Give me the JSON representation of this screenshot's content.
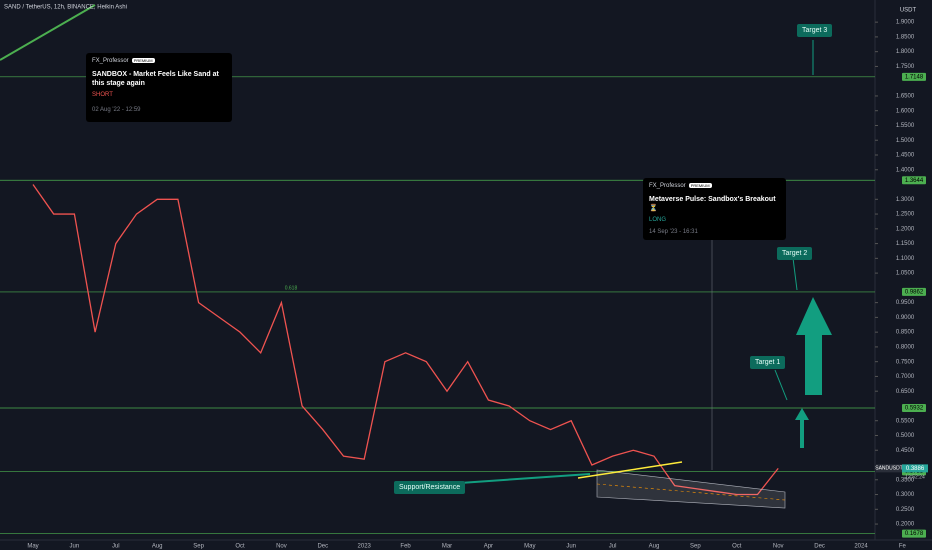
{
  "chart_data": {
    "type": "line",
    "title": "SAND / TetherUS, 12h, BINANCE, Heikin Ashi",
    "currency": "USDT",
    "categories": [
      "May",
      null,
      "Jun",
      null,
      "Jul",
      null,
      "Aug",
      null,
      "Sep",
      null,
      "Oct",
      null,
      "Nov",
      null,
      "Dec",
      null,
      "2023",
      null,
      "Feb",
      null,
      "Mar",
      null,
      "Apr",
      null,
      "May",
      null,
      "Jun",
      null,
      "Jul",
      null,
      "Aug",
      null,
      "Sep",
      null,
      "Oct",
      null,
      "Nov",
      null,
      "Dec",
      null,
      "2024",
      null,
      "Fe"
    ],
    "series": [
      {
        "name": "SANDUSDT",
        "color": "#ef5350",
        "values": [
          1.35,
          1.25,
          1.25,
          0.85,
          1.15,
          1.25,
          1.3,
          1.3,
          0.95,
          0.9,
          0.85,
          0.78,
          0.95,
          0.6,
          0.52,
          0.43,
          0.42,
          0.75,
          0.78,
          0.75,
          0.65,
          0.75,
          0.62,
          0.6,
          0.55,
          0.52,
          0.55,
          0.4,
          0.43,
          0.45,
          0.43,
          0.33,
          0.32,
          0.31,
          0.3,
          0.3,
          0.3886,
          null,
          null,
          null,
          null,
          null,
          null
        ]
      }
    ],
    "ylim": [
      0.146,
      1.975
    ],
    "yticks": [
      {
        "value": 0.2,
        "label": "0.2000"
      },
      {
        "value": 0.25,
        "label": "0.2500"
      },
      {
        "value": 0.3,
        "label": "0.3000"
      },
      {
        "value": 0.35,
        "label": "0.3500"
      },
      {
        "value": 0.45,
        "label": "0.4500"
      },
      {
        "value": 0.5,
        "label": "0.5000"
      },
      {
        "value": 0.55,
        "label": "0.5500"
      },
      {
        "value": 0.65,
        "label": "0.6500"
      },
      {
        "value": 0.7,
        "label": "0.7000"
      },
      {
        "value": 0.75,
        "label": "0.7500"
      },
      {
        "value": 0.8,
        "label": "0.8000"
      },
      {
        "value": 0.85,
        "label": "0.8500"
      },
      {
        "value": 0.9,
        "label": "0.9000"
      },
      {
        "value": 0.95,
        "label": "0.9500"
      },
      {
        "value": 1.05,
        "label": "1.0500"
      },
      {
        "value": 1.1,
        "label": "1.1000"
      },
      {
        "value": 1.15,
        "label": "1.1500"
      },
      {
        "value": 1.2,
        "label": "1.2000"
      },
      {
        "value": 1.25,
        "label": "1.2500"
      },
      {
        "value": 1.3,
        "label": "1.3000"
      },
      {
        "value": 1.4,
        "label": "1.4000"
      },
      {
        "value": 1.45,
        "label": "1.4500"
      },
      {
        "value": 1.5,
        "label": "1.5000"
      },
      {
        "value": 1.55,
        "label": "1.5500"
      },
      {
        "value": 1.6,
        "label": "1.6000"
      },
      {
        "value": 1.65,
        "label": "1.6500"
      },
      {
        "value": 1.75,
        "label": "1.7500"
      },
      {
        "value": 1.8,
        "label": "1.8000"
      },
      {
        "value": 1.85,
        "label": "1.8500"
      },
      {
        "value": 1.9,
        "label": "1.9000"
      }
    ],
    "levels": [
      1.7148,
      1.3644,
      0.9862,
      0.5932,
      0.3783,
      0.1678
    ],
    "last_price": 0.3886,
    "countdown": "13:52:24",
    "fib_label": "0.618",
    "targets": [
      {
        "label": "Target 3"
      },
      {
        "label": "Target 2"
      },
      {
        "label": "Target 1"
      }
    ],
    "support_label": "Support/Resistance",
    "ideas": [
      {
        "author": "FX_Professor",
        "badge": "PREMIUM",
        "title": "SANDBOX - Market Feels Like Sand at this stage again",
        "direction": "SHORT",
        "date": "02 Aug '22 - 12:59"
      },
      {
        "author": "FX_Professor",
        "badge": "PREMIUM",
        "title": "Metaverse Pulse:  Sandbox's Breakout ⏳",
        "direction": "LONG",
        "date": "14 Sep '23 - 16:31"
      }
    ]
  }
}
